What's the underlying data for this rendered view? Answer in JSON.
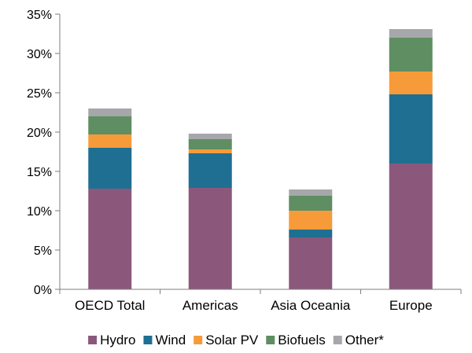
{
  "chart_data": {
    "type": "bar",
    "stacked": true,
    "title": "",
    "xlabel": "",
    "ylabel": "",
    "ylim": [
      0,
      35
    ],
    "y_tick_format": "percent",
    "y_ticks": [
      "0%",
      "5%",
      "10%",
      "15%",
      "20%",
      "25%",
      "30%",
      "35%"
    ],
    "categories": [
      "OECD Total",
      "Americas",
      "Asia Oceania",
      "Europe"
    ],
    "series": [
      {
        "name": "Hydro",
        "color": "#8B587C",
        "values": [
          12.8,
          12.9,
          6.6,
          16.0
        ]
      },
      {
        "name": "Wind",
        "color": "#1F6F92",
        "values": [
          5.2,
          4.4,
          1.0,
          8.8
        ]
      },
      {
        "name": "Solar PV",
        "color": "#F79B3A",
        "values": [
          1.7,
          0.5,
          2.4,
          2.9
        ]
      },
      {
        "name": "Biofuels",
        "color": "#5E8E62",
        "values": [
          2.3,
          1.3,
          1.9,
          4.3
        ]
      },
      {
        "name": "Other*",
        "color": "#A6A7AB",
        "values": [
          1.0,
          0.7,
          0.8,
          1.1
        ]
      }
    ],
    "grid": false,
    "legend_position": "bottom"
  }
}
